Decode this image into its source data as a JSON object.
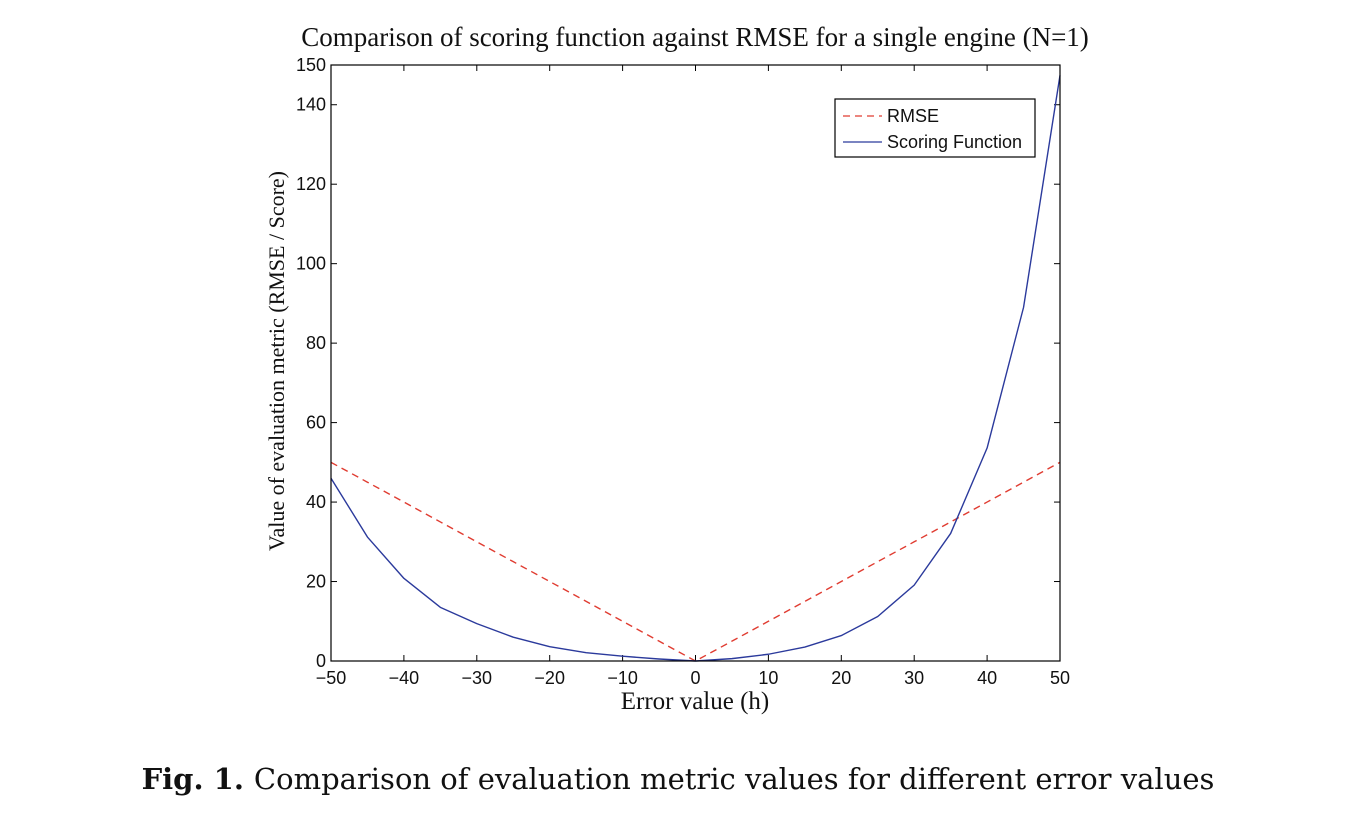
{
  "chart_data": {
    "type": "line",
    "title": "Comparison of scoring function against RMSE for a single engine (N=1)",
    "xlabel": "Error value (h)",
    "ylabel": "Value of evaluation metric (RMSE / Score)",
    "xlim": [
      -50,
      50
    ],
    "ylim": [
      0,
      150
    ],
    "xticks": [
      -50,
      -40,
      -30,
      -20,
      -10,
      0,
      10,
      20,
      30,
      40,
      50
    ],
    "yticks": [
      0,
      20,
      40,
      60,
      80,
      100,
      120,
      140,
      150
    ],
    "xtick_labels": [
      "−50",
      "−40",
      "−30",
      "−20",
      "−10",
      "0",
      "10",
      "20",
      "30",
      "40",
      "50"
    ],
    "ytick_labels": [
      "0",
      "20",
      "40",
      "60",
      "80",
      "100",
      "120",
      "140",
      "150"
    ],
    "grid": false,
    "legend_position": "top-right",
    "x": [
      -50,
      -45,
      -40,
      -35,
      -30,
      -25,
      -20,
      -15,
      -10,
      -5,
      0,
      5,
      10,
      15,
      20,
      25,
      30,
      35,
      40,
      45,
      50
    ],
    "series": [
      {
        "name": "RMSE",
        "style": "dashed",
        "color": "#e03c31",
        "values": [
          50,
          45,
          40,
          35,
          30,
          25,
          20,
          15,
          10,
          5,
          0,
          5,
          10,
          15,
          20,
          25,
          30,
          35,
          40,
          45,
          50
        ]
      },
      {
        "name": "Scoring Function",
        "style": "solid",
        "color": "#2b3a9c",
        "values": [
          46.0,
          31.2,
          20.8,
          13.5,
          9.4,
          6.0,
          3.6,
          2.1,
          1.2,
          0.5,
          0,
          0.6,
          1.7,
          3.5,
          6.4,
          11.2,
          19.1,
          32.1,
          53.6,
          89.0,
          147.4
        ]
      }
    ]
  },
  "caption": {
    "label": "Fig. 1.",
    "text": "Comparison of evaluation metric values for different error values"
  }
}
